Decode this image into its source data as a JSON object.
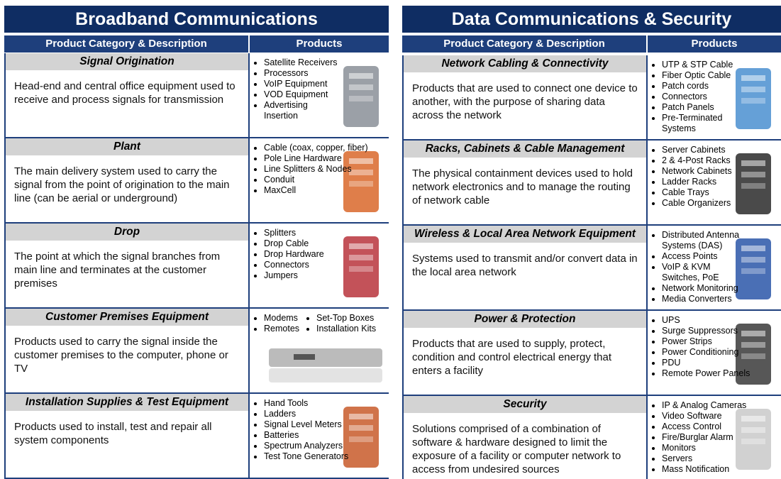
{
  "panels": [
    {
      "title": "Broadband Communications",
      "headers": [
        "Product Category & Description",
        "Products"
      ],
      "rows": [
        {
          "category": "Signal Origination",
          "description": "Head-end and central office equipment used to receive and process signals for transmission",
          "products": [
            "Satellite Receivers",
            "Processors",
            "VoIP Equipment",
            "VOD Equipment",
            "Advertising Insertion"
          ]
        },
        {
          "category": "Plant",
          "description": "The main delivery system used to carry the signal from the point of origination to the main line (can be aerial or underground)",
          "products": [
            "Cable (coax, copper, fiber)",
            "Pole Line Hardware",
            "Line Splitters & Nodes",
            "Conduit",
            "MaxCell"
          ]
        },
        {
          "category": "Drop",
          "description": "The point at which the signal branches from main line and terminates at the customer premises",
          "products": [
            "Splitters",
            "Drop Cable",
            "Drop Hardware",
            "Connectors",
            "Jumpers"
          ]
        },
        {
          "category": "Customer Premises Equipment",
          "description": "Products used to carry the signal inside the customer premises to the computer, phone or TV",
          "products": [
            "Modems",
            "Set-Top Boxes",
            "Remotes",
            "Installation Kits"
          ]
        },
        {
          "category": "Installation Supplies & Test Equipment",
          "description": "Products used to install, test and repair all system components",
          "products": [
            "Hand Tools",
            "Ladders",
            "Signal Level Meters",
            "Batteries",
            "Spectrum Analyzers",
            "Test Tone Generators"
          ]
        }
      ]
    },
    {
      "title": "Data Communications & Security",
      "headers": [
        "Product Category & Description",
        "Products"
      ],
      "rows": [
        {
          "category": "Network Cabling & Connectivity",
          "description": "Products that are used to connect one device to another, with the purpose of sharing data across the network",
          "products": [
            "UTP & STP Cable",
            "Fiber Optic Cable",
            "Patch cords",
            "Connectors",
            "Patch Panels",
            "Pre-Terminated Systems"
          ]
        },
        {
          "category": "Racks, Cabinets & Cable Management",
          "description": "The physical containment devices used to hold network electronics and to manage the routing of network cable",
          "products": [
            "Server Cabinets",
            "2 & 4-Post Racks",
            "Network Cabinets",
            "Ladder Racks",
            "Cable Trays",
            "Cable Organizers"
          ]
        },
        {
          "category": "Wireless & Local Area Network Equipment",
          "description": "Systems used to transmit and/or convert data in the local area network",
          "products": [
            "Distributed Antenna Systems (DAS)",
            "Access Points",
            "VoIP & KVM Switches, PoE",
            "Network Monitoring",
            "Media Converters"
          ]
        },
        {
          "category": "Power & Protection",
          "description": "Products that are used to supply, protect, condition and control electrical energy that enters a facility",
          "products": [
            "UPS",
            "Surge Suppressors",
            "Power Strips",
            "Power Conditioning",
            "PDU",
            "Remote Power Panels"
          ]
        },
        {
          "category": "Security",
          "description": "Solutions comprised of a combination of software & hardware designed to limit the exposure of a facility or computer network to access from undesired sources",
          "products": [
            "IP & Analog Cameras",
            "Video Software",
            "Access Control",
            "Fire/Burglar Alarm",
            "Monitors",
            "Servers",
            "Mass Notification"
          ]
        }
      ]
    }
  ]
}
